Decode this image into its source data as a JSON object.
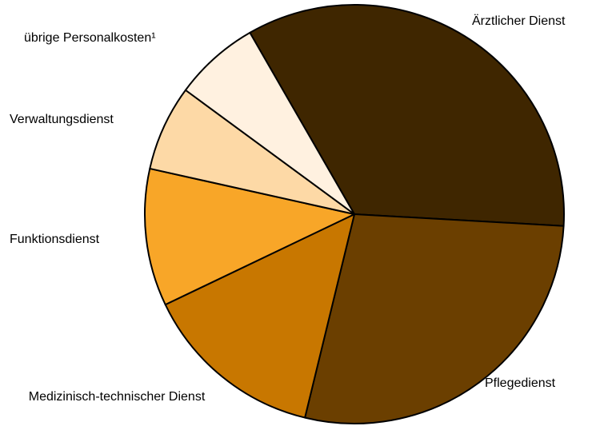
{
  "chart_data": {
    "type": "pie",
    "categories": [
      "Ärztlicher Dienst",
      "Pflegedienst",
      "Medizinisch-technischer Dienst",
      "Funktionsdienst",
      "Verwaltungsdienst",
      "übrige Personalkosten¹"
    ],
    "values": [
      34.2,
      27.9,
      14.1,
      10.6,
      6.6,
      6.6
    ],
    "colors": [
      "#3f2600",
      "#6b3f00",
      "#c87700",
      "#f8a628",
      "#fdd9a6",
      "#fff1e0"
    ]
  }
}
